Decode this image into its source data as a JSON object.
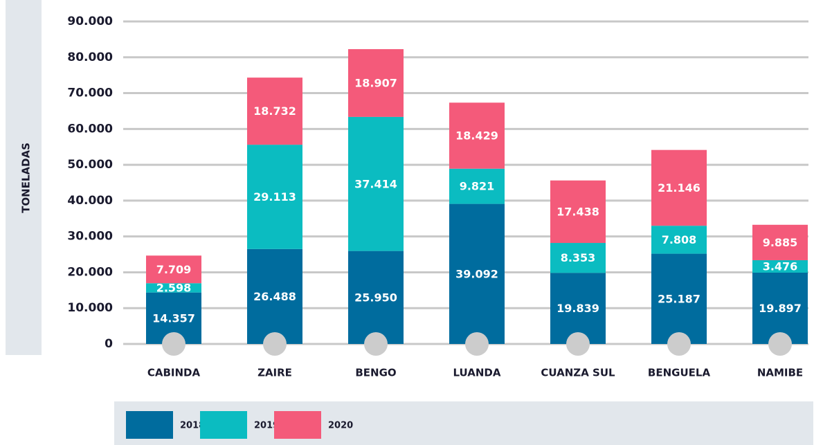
{
  "chart_data": {
    "type": "stacked_bar",
    "y_label": "TONELADAS",
    "categories": [
      "CABINDA",
      "ZAIRE",
      "BENGO",
      "LUANDA",
      "CUANZA SUL",
      "BENGUELA",
      "NAMIBE"
    ],
    "series": [
      {
        "name": "2018",
        "color": "#006c9e",
        "values": [
          14357,
          26488,
          25950,
          39092,
          19839,
          25187,
          19897
        ],
        "value_labels": [
          "14.357",
          "26.488",
          "25.950",
          "39.092",
          "19.839",
          "25.187",
          "19.897"
        ]
      },
      {
        "name": "2019",
        "color": "#0bbcc1",
        "values": [
          2598,
          29113,
          37414,
          9821,
          8353,
          7808,
          3476
        ],
        "value_labels": [
          "2.598",
          "29.113",
          "37.414",
          "9.821",
          "8.353",
          "7.808",
          "3.476"
        ]
      },
      {
        "name": "2020",
        "color": "#f45a7a",
        "values": [
          7709,
          18732,
          18907,
          18429,
          17438,
          21146,
          9885
        ],
        "value_labels": [
          "7.709",
          "18.732",
          "18.907",
          "18.429",
          "17.438",
          "21.146",
          "9.885"
        ]
      }
    ],
    "ylim": [
      0,
      90000
    ],
    "yticks": [
      0,
      {
        "value": 10000,
        "label": "10.000"
      },
      {
        "value": 20000,
        "label": "20.000"
      },
      {
        "value": 30000,
        "label": "30.000"
      },
      {
        "value": 40000,
        "label": "40.000"
      },
      {
        "value": 50000,
        "label": "50.000"
      },
      {
        "value": 60000,
        "label": "60.000"
      },
      {
        "value": 70000,
        "label": "70.000"
      },
      {
        "value": 80000,
        "label": "80.000"
      },
      {
        "value": 90000,
        "label": "90.000"
      }
    ],
    "grid": true,
    "legend": "bottom"
  }
}
